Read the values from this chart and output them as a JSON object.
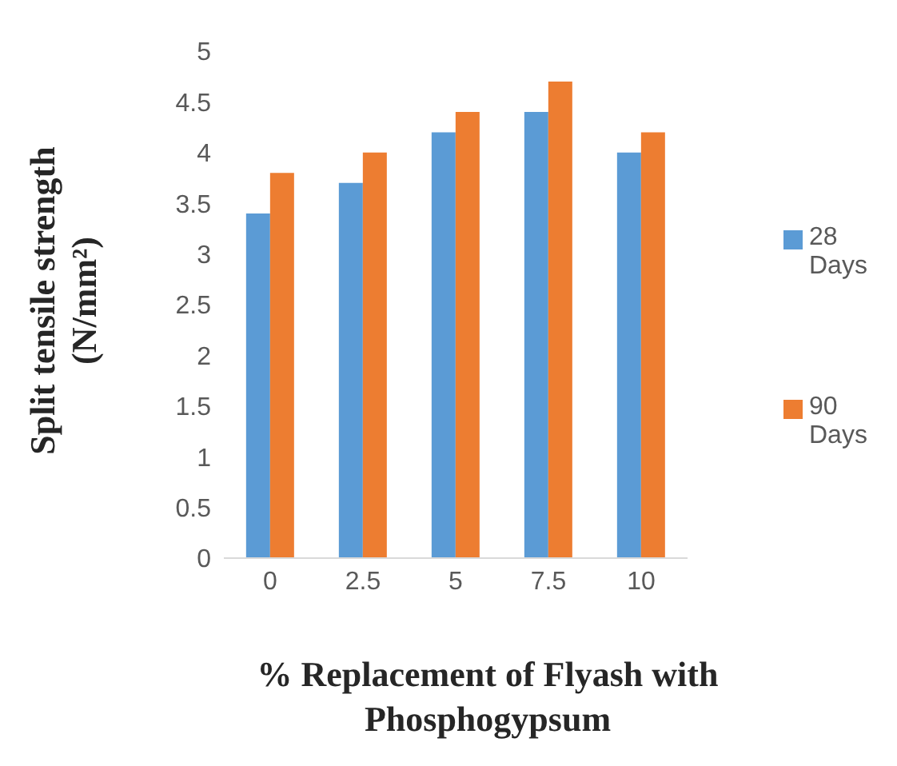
{
  "chart_data": {
    "type": "bar",
    "xlabel": "% Replacement of Flyash with Phosphogypsum",
    "ylabel": "Split tensile strength (N/mm²)",
    "categories": [
      "0",
      "2.5",
      "5",
      "7.5",
      "10"
    ],
    "series": [
      {
        "name": "28 Days",
        "color": "#5b9bd5",
        "values": [
          3.4,
          3.7,
          4.2,
          4.4,
          4.0
        ]
      },
      {
        "name": "90 Days",
        "color": "#ed7d31",
        "values": [
          3.8,
          4.0,
          4.4,
          4.7,
          4.2
        ]
      }
    ],
    "ylim": [
      0,
      5
    ],
    "yticks": [
      0,
      0.5,
      1,
      1.5,
      2,
      2.5,
      3,
      3.5,
      4,
      4.5,
      5
    ],
    "legend": "right"
  }
}
